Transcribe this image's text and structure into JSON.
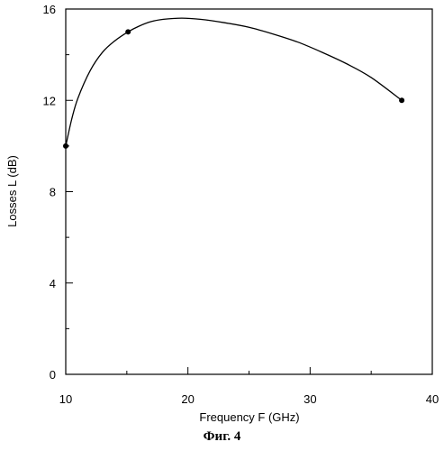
{
  "figure": {
    "caption": "Фиг. 4"
  },
  "chart_data": {
    "type": "line",
    "xlabel": "Frequency  F  (GHz)",
    "ylabel": "Losses  L  (dB)",
    "xlim": [
      10,
      40
    ],
    "ylim": [
      0,
      16
    ],
    "xticks": [
      10,
      20,
      30,
      40
    ],
    "yticks": [
      0,
      4,
      8,
      12,
      16
    ],
    "grid": false,
    "markers": [
      {
        "x": 10,
        "y": 10
      },
      {
        "x": 15.1,
        "y": 15
      },
      {
        "x": 37.5,
        "y": 12
      }
    ],
    "curve": [
      {
        "x": 10,
        "y": 10
      },
      {
        "x": 10.5,
        "y": 11.2
      },
      {
        "x": 11,
        "y": 12.1
      },
      {
        "x": 12,
        "y": 13.3
      },
      {
        "x": 13,
        "y": 14.1
      },
      {
        "x": 14,
        "y": 14.6
      },
      {
        "x": 15.1,
        "y": 15
      },
      {
        "x": 16,
        "y": 15.25
      },
      {
        "x": 17,
        "y": 15.45
      },
      {
        "x": 18,
        "y": 15.55
      },
      {
        "x": 19.5,
        "y": 15.6
      },
      {
        "x": 21,
        "y": 15.55
      },
      {
        "x": 23,
        "y": 15.4
      },
      {
        "x": 25,
        "y": 15.2
      },
      {
        "x": 27,
        "y": 14.9
      },
      {
        "x": 29,
        "y": 14.55
      },
      {
        "x": 31,
        "y": 14.1
      },
      {
        "x": 33,
        "y": 13.6
      },
      {
        "x": 35,
        "y": 13.0
      },
      {
        "x": 37.5,
        "y": 12
      }
    ]
  }
}
